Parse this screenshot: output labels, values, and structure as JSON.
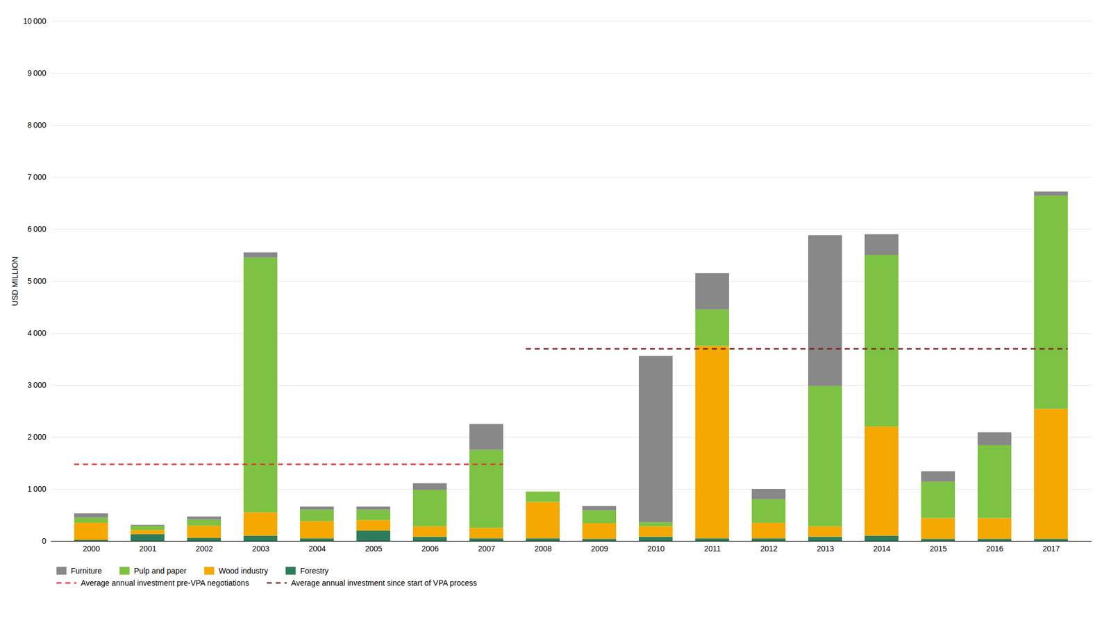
{
  "chart_data": {
    "type": "bar",
    "stacked": true,
    "grid": true,
    "legend": "bottom",
    "categories": [
      "2000",
      "2001",
      "2002",
      "2003",
      "2004",
      "2005",
      "2006",
      "2007",
      "2008",
      "2009",
      "2010",
      "2011",
      "2012",
      "2013",
      "2014",
      "2015",
      "2016",
      "2017"
    ],
    "series": [
      {
        "name": "Forestry",
        "type": "bar",
        "color": "#2e7d5a",
        "values": [
          20,
          130,
          60,
          100,
          50,
          200,
          80,
          50,
          50,
          40,
          80,
          50,
          50,
          80,
          100,
          40,
          40,
          40
        ]
      },
      {
        "name": "Wood industry",
        "type": "bar",
        "color": "#f5a800",
        "values": [
          330,
          80,
          230,
          450,
          330,
          200,
          200,
          200,
          700,
          300,
          200,
          3700,
          300,
          200,
          2100,
          400,
          400,
          2500
        ]
      },
      {
        "name": "Pulp and paper",
        "type": "bar",
        "color": "#7dc242",
        "values": [
          100,
          80,
          120,
          4900,
          220,
          200,
          700,
          1500,
          200,
          250,
          80,
          700,
          450,
          2700,
          3300,
          700,
          1400,
          4100
        ]
      },
      {
        "name": "Furniture",
        "type": "bar",
        "color": "#888888",
        "values": [
          80,
          20,
          60,
          100,
          60,
          60,
          130,
          500,
          0,
          80,
          3200,
          700,
          200,
          2900,
          400,
          200,
          250,
          80
        ]
      },
      {
        "name": "Average annual investment pre-VPA negotiations",
        "type": "line",
        "line_style": "dashed",
        "color": "#e83030",
        "values": [
          1480,
          1480,
          1480,
          1480,
          1480,
          1480,
          1480,
          1480,
          null,
          null,
          null,
          null,
          null,
          null,
          null,
          null,
          null,
          null
        ]
      },
      {
        "name": "Average annual investment since start of VPA process",
        "type": "line",
        "line_style": "dashed",
        "color": "#7b1c1c",
        "values": [
          null,
          null,
          null,
          null,
          null,
          null,
          null,
          null,
          3700,
          3700,
          3700,
          3700,
          3700,
          3700,
          3700,
          3700,
          3700,
          3700
        ]
      }
    ],
    "ylabel": "USD MILLION",
    "ylim": [
      0,
      10000
    ],
    "yticks": [
      0,
      {
        "value": 1000,
        "label": "1 000"
      },
      {
        "value": 2000,
        "label": "2 000"
      },
      {
        "value": 3000,
        "label": "3 000"
      },
      {
        "value": 4000,
        "label": "4 000"
      },
      {
        "value": 5000,
        "label": "5 000"
      },
      {
        "value": 6000,
        "label": "6 000"
      },
      {
        "value": 7000,
        "label": "7 000"
      },
      {
        "value": 8000,
        "label": "8 000"
      },
      {
        "value": 9000,
        "label": "9 000"
      },
      {
        "value": 10000,
        "label": "10 000"
      }
    ]
  }
}
